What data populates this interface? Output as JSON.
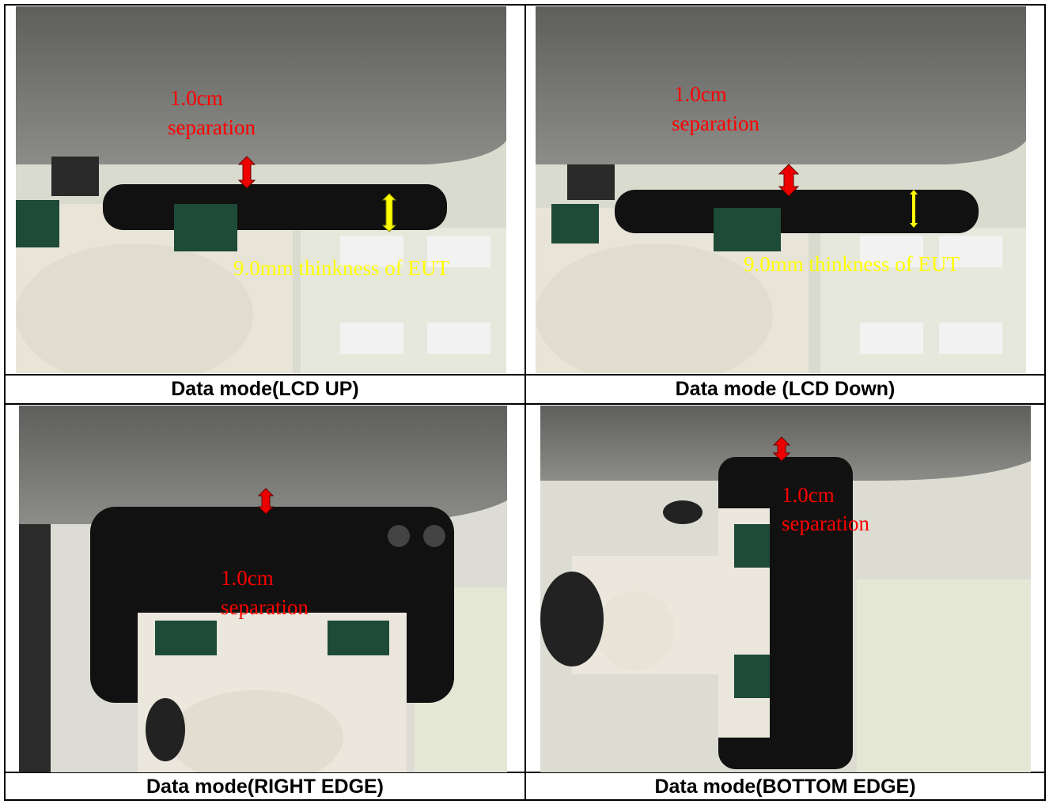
{
  "cells": [
    {
      "caption": "Data mode(LCD UP)",
      "separation": [
        "1.0cm",
        "separation"
      ],
      "thickness": "9.0mm thinkness of EUT"
    },
    {
      "caption": "Data mode (LCD Down)",
      "separation": [
        "1.0cm",
        "separation"
      ],
      "thickness": "9.0mm thinkness of EUT"
    },
    {
      "caption": "Data mode(RIGHT EDGE)",
      "separation": [
        "1.0cm",
        "separation"
      ]
    },
    {
      "caption": "Data mode(BOTTOM EDGE)",
      "separation": [
        "1.0cm",
        "separation"
      ]
    }
  ]
}
